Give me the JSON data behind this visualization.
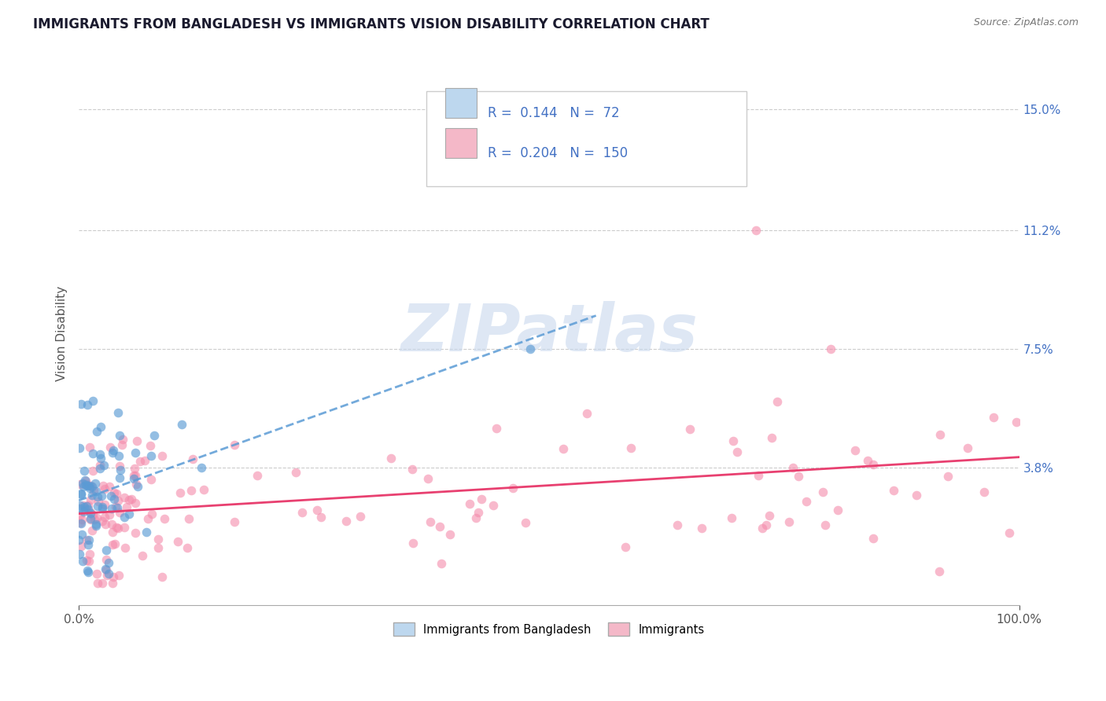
{
  "title": "IMMIGRANTS FROM BANGLADESH VS IMMIGRANTS VISION DISABILITY CORRELATION CHART",
  "source_text": "Source: ZipAtlas.com",
  "ylabel": "Vision Disability",
  "xlim": [
    0.0,
    1.0
  ],
  "ylim": [
    -0.005,
    0.165
  ],
  "yticks": [
    0.038,
    0.075,
    0.112,
    0.15
  ],
  "ytick_labels": [
    "3.8%",
    "7.5%",
    "11.2%",
    "15.0%"
  ],
  "xticks": [
    0.0,
    1.0
  ],
  "xtick_labels": [
    "0.0%",
    "100.0%"
  ],
  "blue_R": 0.144,
  "blue_N": 72,
  "pink_R": 0.204,
  "pink_N": 150,
  "blue_scatter_color": "#5b9bd5",
  "pink_scatter_color": "#f48bab",
  "blue_fill_color": "#bdd7ee",
  "pink_fill_color": "#f4b8c8",
  "blue_trend_color": "#5b9bd5",
  "pink_trend_color": "#e84070",
  "watermark": "ZIPatlas",
  "watermark_color": "#c8d8ee",
  "legend_label_blue": "Immigrants from Bangladesh",
  "legend_label_pink": "Immigrants",
  "title_fontsize": 12,
  "label_fontsize": 11,
  "tick_fontsize": 11,
  "background_color": "#ffffff",
  "grid_color": "#cccccc"
}
